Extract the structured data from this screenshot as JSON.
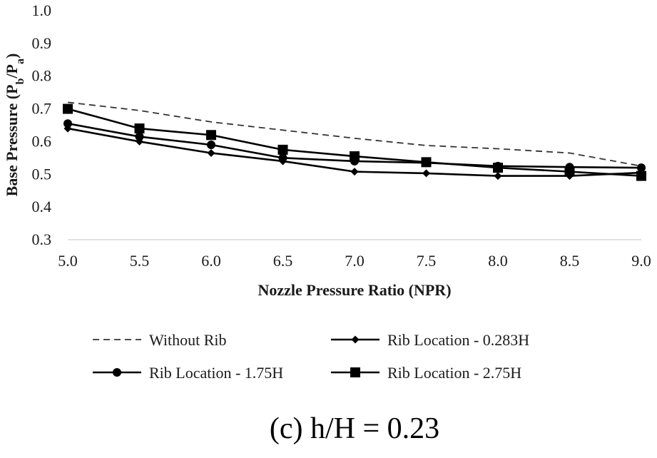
{
  "chart_data": {
    "type": "line",
    "title": "",
    "xlabel": "Nozzle Pressure Ratio (NPR)",
    "ylabel": {
      "prefix": "Base Pressure (P",
      "sub1": "b",
      "mid": "/P",
      "sub2": "a",
      "suffix": ")"
    },
    "x": [
      5.0,
      5.5,
      6.0,
      6.5,
      7.0,
      7.5,
      8.0,
      8.5,
      9.0
    ],
    "x_tick_labels": [
      "5.0",
      "5.5",
      "6.0",
      "6.5",
      "7.0",
      "7.5",
      "8.0",
      "8.5",
      "9.0"
    ],
    "ylim": [
      0.3,
      1.0
    ],
    "xlim": [
      5.0,
      9.0
    ],
    "y_ticks": [
      0.3,
      0.4,
      0.5,
      0.6,
      0.7,
      0.8,
      0.9,
      1.0
    ],
    "y_tick_labels": [
      "0.3",
      "0.4",
      "0.5",
      "0.6",
      "0.7",
      "0.8",
      "0.9",
      "1.0"
    ],
    "grid": false,
    "legend_position": "bottom",
    "series": [
      {
        "name": "Without Rib",
        "style": "dashed",
        "marker": "none",
        "values": [
          0.72,
          0.695,
          0.66,
          0.635,
          0.61,
          0.588,
          0.578,
          0.565,
          0.525
        ]
      },
      {
        "name": "Rib Location - 0.283H",
        "style": "solid",
        "marker": "diamond",
        "values": [
          0.64,
          0.6,
          0.565,
          0.54,
          0.508,
          0.503,
          0.495,
          0.495,
          0.505
        ]
      },
      {
        "name": "Rib Location - 1.75H",
        "style": "solid",
        "marker": "circle",
        "values": [
          0.655,
          0.615,
          0.59,
          0.55,
          0.54,
          0.535,
          0.525,
          0.522,
          0.52
        ]
      },
      {
        "name": "Rib Location - 2.75H",
        "style": "solid",
        "marker": "square",
        "values": [
          0.7,
          0.64,
          0.62,
          0.575,
          0.555,
          0.537,
          0.52,
          0.508,
          0.495
        ]
      }
    ],
    "caption": "(c) h/H = 0.23"
  }
}
